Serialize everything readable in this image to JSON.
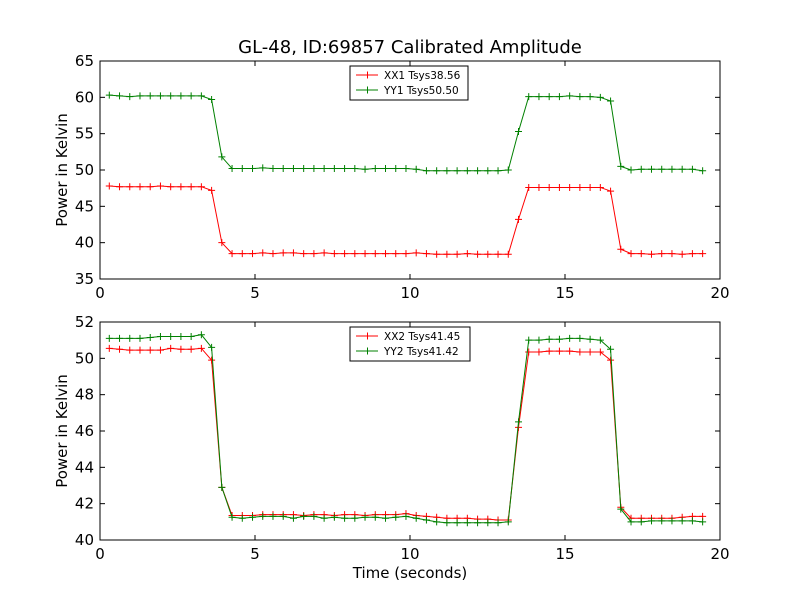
{
  "figure": {
    "title": "GL-48, ID:69857 Calibrated Amplitude",
    "xlabel": "Time (seconds)"
  },
  "colors": {
    "xx": "#ff0000",
    "yy": "#008000",
    "axis": "#000000",
    "background": "#ffffff"
  },
  "chart_data": [
    {
      "type": "line",
      "title": "GL-48, ID:69857 Calibrated Amplitude",
      "xlabel": "",
      "ylabel": "Power in Kelvin",
      "xlim": [
        0,
        20
      ],
      "ylim": [
        35,
        65
      ],
      "xticks": [
        "0",
        "5",
        "10",
        "15",
        "20"
      ],
      "yticks": [
        "35",
        "40",
        "45",
        "50",
        "55",
        "60",
        "65"
      ],
      "grid": false,
      "legend_position": "top-center",
      "x": [
        0.3,
        0.63,
        0.96,
        1.29,
        1.62,
        1.95,
        2.28,
        2.61,
        2.94,
        3.27,
        3.6,
        3.93,
        4.26,
        4.59,
        4.92,
        5.25,
        5.58,
        5.91,
        6.24,
        6.57,
        6.9,
        7.23,
        7.56,
        7.89,
        8.22,
        8.55,
        8.88,
        9.21,
        9.54,
        9.87,
        10.2,
        10.53,
        10.86,
        11.19,
        11.52,
        11.85,
        12.18,
        12.51,
        12.84,
        13.17,
        13.5,
        13.83,
        14.16,
        14.49,
        14.82,
        15.15,
        15.48,
        15.81,
        16.14,
        16.47,
        16.8,
        17.13,
        17.46,
        17.79,
        18.12,
        18.45,
        18.78,
        19.11,
        19.44
      ],
      "series": [
        {
          "name": "XX1 Tsys38.56",
          "color": "#ff0000",
          "values": [
            47.8,
            47.7,
            47.7,
            47.7,
            47.7,
            47.8,
            47.7,
            47.7,
            47.7,
            47.7,
            47.2,
            40.0,
            38.5,
            38.5,
            38.5,
            38.6,
            38.5,
            38.6,
            38.6,
            38.5,
            38.5,
            38.6,
            38.5,
            38.5,
            38.5,
            38.5,
            38.5,
            38.5,
            38.5,
            38.5,
            38.6,
            38.5,
            38.4,
            38.4,
            38.4,
            38.5,
            38.4,
            38.4,
            38.4,
            38.4,
            43.2,
            47.6,
            47.6,
            47.6,
            47.6,
            47.6,
            47.6,
            47.6,
            47.6,
            47.1,
            39.1,
            38.5,
            38.5,
            38.4,
            38.5,
            38.5,
            38.4,
            38.5,
            38.5
          ]
        },
        {
          "name": "YY1 Tsys50.50",
          "color": "#008000",
          "values": [
            60.3,
            60.2,
            60.1,
            60.2,
            60.2,
            60.2,
            60.2,
            60.2,
            60.2,
            60.2,
            59.7,
            51.8,
            50.2,
            50.2,
            50.2,
            50.3,
            50.2,
            50.2,
            50.2,
            50.2,
            50.2,
            50.2,
            50.2,
            50.2,
            50.2,
            50.1,
            50.2,
            50.2,
            50.2,
            50.2,
            50.1,
            49.9,
            49.9,
            49.9,
            49.9,
            49.9,
            49.9,
            49.9,
            49.9,
            50.0,
            55.3,
            60.1,
            60.1,
            60.1,
            60.1,
            60.2,
            60.1,
            60.1,
            60.0,
            59.5,
            50.5,
            50.0,
            50.1,
            50.1,
            50.1,
            50.1,
            50.1,
            50.1,
            49.9
          ]
        }
      ]
    },
    {
      "type": "line",
      "title": "",
      "xlabel": "Time (seconds)",
      "ylabel": "Power in Kelvin",
      "xlim": [
        0,
        20
      ],
      "ylim": [
        40,
        52
      ],
      "xticks": [
        "0",
        "5",
        "10",
        "15",
        "20"
      ],
      "yticks": [
        "40",
        "42",
        "44",
        "46",
        "48",
        "50",
        "52"
      ],
      "grid": false,
      "legend_position": "top-center",
      "x": [
        0.3,
        0.63,
        0.96,
        1.29,
        1.62,
        1.95,
        2.28,
        2.61,
        2.94,
        3.27,
        3.6,
        3.93,
        4.26,
        4.59,
        4.92,
        5.25,
        5.58,
        5.91,
        6.24,
        6.57,
        6.9,
        7.23,
        7.56,
        7.89,
        8.22,
        8.55,
        8.88,
        9.21,
        9.54,
        9.87,
        10.2,
        10.53,
        10.86,
        11.19,
        11.52,
        11.85,
        12.18,
        12.51,
        12.84,
        13.17,
        13.5,
        13.83,
        14.16,
        14.49,
        14.82,
        15.15,
        15.48,
        15.81,
        16.14,
        16.47,
        16.8,
        17.13,
        17.46,
        17.79,
        18.12,
        18.45,
        18.78,
        19.11,
        19.44
      ],
      "series": [
        {
          "name": "XX2 Tsys41.45",
          "color": "#ff0000",
          "values": [
            50.55,
            50.5,
            50.45,
            50.45,
            50.45,
            50.45,
            50.55,
            50.5,
            50.5,
            50.55,
            49.9,
            42.9,
            41.35,
            41.35,
            41.35,
            41.4,
            41.4,
            41.4,
            41.4,
            41.35,
            41.4,
            41.4,
            41.35,
            41.4,
            41.4,
            41.35,
            41.4,
            41.4,
            41.4,
            41.45,
            41.35,
            41.3,
            41.25,
            41.2,
            41.2,
            41.2,
            41.15,
            41.15,
            41.1,
            41.1,
            46.2,
            50.35,
            50.35,
            50.4,
            50.4,
            50.4,
            50.35,
            50.35,
            50.35,
            49.9,
            41.8,
            41.2,
            41.2,
            41.2,
            41.2,
            41.2,
            41.25,
            41.3,
            41.3
          ]
        },
        {
          "name": "YY2 Tsys41.42",
          "color": "#008000",
          "values": [
            51.1,
            51.1,
            51.1,
            51.1,
            51.15,
            51.2,
            51.2,
            51.2,
            51.2,
            51.3,
            50.6,
            42.9,
            41.25,
            41.2,
            41.25,
            41.3,
            41.3,
            41.3,
            41.2,
            41.3,
            41.3,
            41.2,
            41.25,
            41.2,
            41.2,
            41.25,
            41.25,
            41.2,
            41.25,
            41.3,
            41.2,
            41.1,
            41.0,
            40.95,
            40.95,
            40.95,
            40.95,
            40.95,
            40.95,
            41.0,
            46.5,
            51.0,
            51.0,
            51.05,
            51.05,
            51.1,
            51.1,
            51.05,
            51.0,
            50.5,
            41.7,
            41.0,
            41.0,
            41.05,
            41.05,
            41.05,
            41.05,
            41.05,
            41.0
          ]
        }
      ]
    }
  ]
}
